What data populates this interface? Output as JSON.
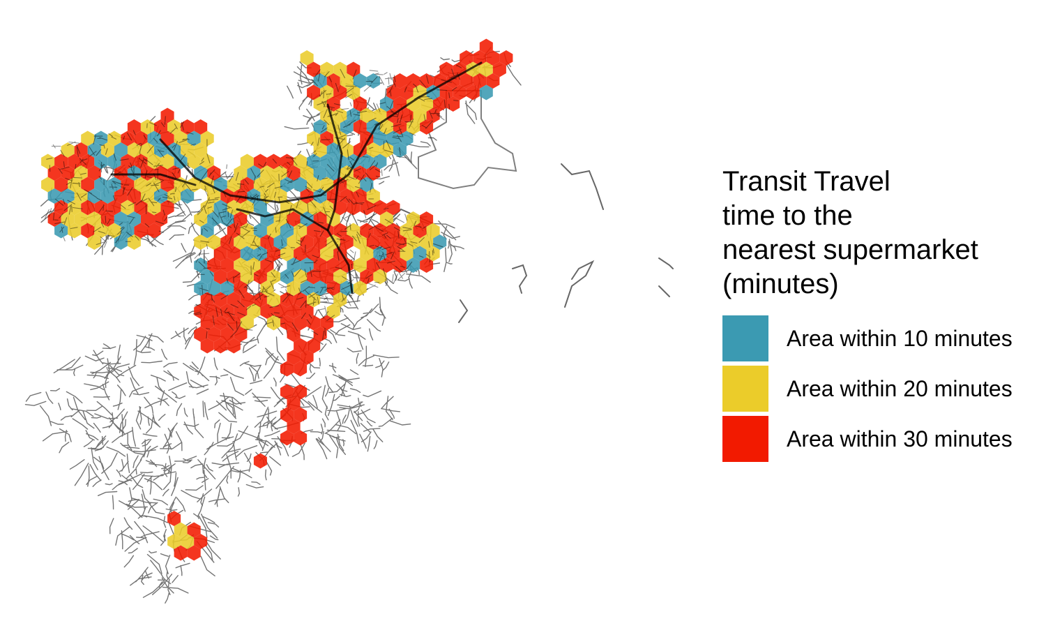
{
  "map": {
    "legend": {
      "title": "Transit Travel\ntime to the\nnearest supermarket\n(minutes)",
      "items": [
        {
          "label": "Area within 10 minutes",
          "color": "#3B9AB2"
        },
        {
          "label": "Area within 20 minutes",
          "color": "#EBCC2A"
        },
        {
          "label": "Area within 30 minutes",
          "color": "#F21A00"
        }
      ]
    },
    "street_color": "#000000"
  }
}
